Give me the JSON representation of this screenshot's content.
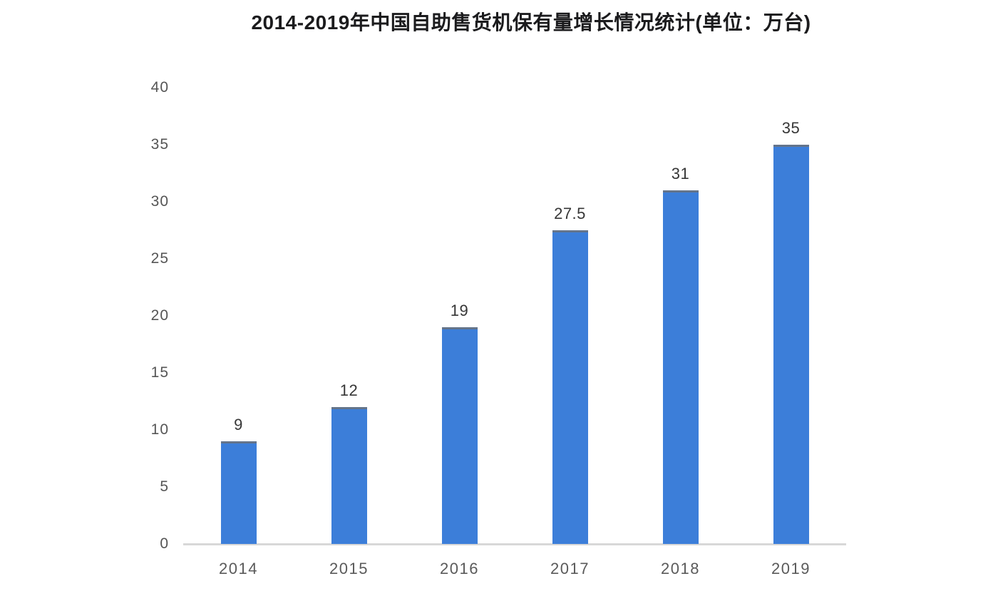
{
  "chart_data": {
    "type": "bar",
    "title": "2014-2019年中国自助售货机保有量增长情况统计(单位：万台)",
    "categories": [
      "2014",
      "2015",
      "2016",
      "2017",
      "2018",
      "2019"
    ],
    "values": [
      9,
      12,
      19,
      27.5,
      31,
      35
    ],
    "value_labels": [
      "9",
      "12",
      "19",
      "27.5",
      "31",
      "35"
    ],
    "y_ticks": [
      0,
      5,
      10,
      15,
      20,
      25,
      30,
      35,
      40
    ],
    "ylim": [
      0,
      40
    ],
    "xlabel": "",
    "ylabel": "",
    "grid": false,
    "legend_position": "none",
    "colors": {
      "bar": "#3c7ed9",
      "bar_top_edge": "#64748b",
      "axis_line": "#d8d8d8",
      "title_text": "#1b1b1d",
      "tick_text": "#555555",
      "value_label_text": "#363636",
      "background": "#ffffff"
    }
  }
}
